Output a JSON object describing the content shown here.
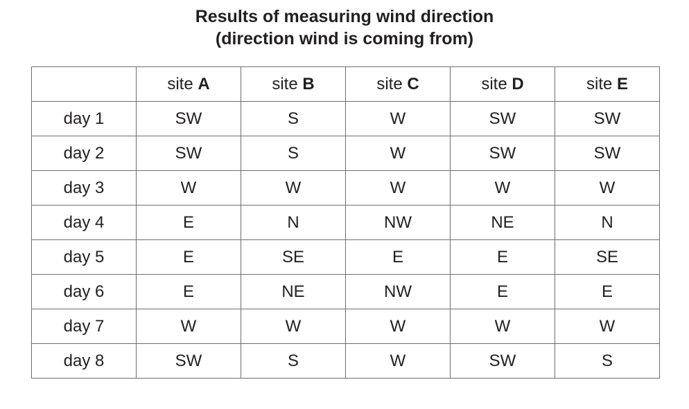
{
  "title": {
    "line1": "Results of measuring wind direction",
    "line2": "(direction wind is coming from)"
  },
  "table": {
    "headers": [
      {
        "prefix": "site ",
        "letter": "A"
      },
      {
        "prefix": "site ",
        "letter": "B"
      },
      {
        "prefix": "site ",
        "letter": "C"
      },
      {
        "prefix": "site ",
        "letter": "D"
      },
      {
        "prefix": "site ",
        "letter": "E"
      }
    ],
    "rows": [
      {
        "label": "day 1",
        "cells": [
          "SW",
          "S",
          "W",
          "SW",
          "SW"
        ]
      },
      {
        "label": "day 2",
        "cells": [
          "SW",
          "S",
          "W",
          "SW",
          "SW"
        ]
      },
      {
        "label": "day 3",
        "cells": [
          "W",
          "W",
          "W",
          "W",
          "W"
        ]
      },
      {
        "label": "day 4",
        "cells": [
          "E",
          "N",
          "NW",
          "NE",
          "N"
        ]
      },
      {
        "label": "day 5",
        "cells": [
          "E",
          "SE",
          "E",
          "E",
          "SE"
        ]
      },
      {
        "label": "day 6",
        "cells": [
          "E",
          "NE",
          "NW",
          "E",
          "E"
        ]
      },
      {
        "label": "day 7",
        "cells": [
          "W",
          "W",
          "W",
          "W",
          "W"
        ]
      },
      {
        "label": "day 8",
        "cells": [
          "SW",
          "S",
          "W",
          "SW",
          "S"
        ]
      }
    ]
  }
}
